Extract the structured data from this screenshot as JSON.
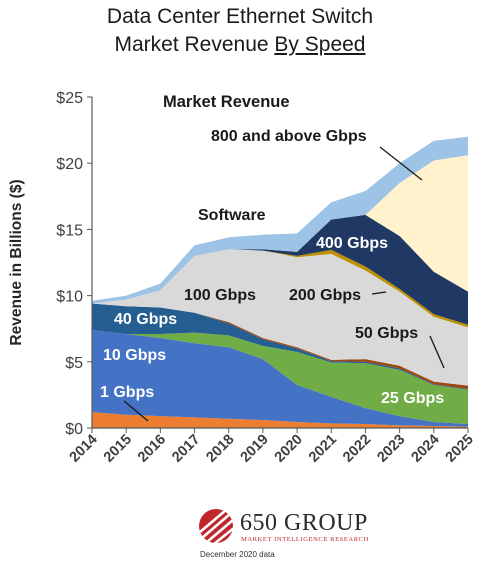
{
  "page": {
    "title_line1": "Data Center Ethernet Switch",
    "title_line2_prefix": "Market Revenue ",
    "title_line2_underlined": "By Speed",
    "logo_text": "650 GROUP",
    "logo_subtext": "MARKET INTELLIGENCE RESEARCH",
    "footnote": "December 2020 data"
  },
  "chart_data": {
    "type": "area",
    "stacked": true,
    "title": "Data Center Ethernet Switch Market Revenue By Speed",
    "xlabel": "",
    "ylabel": "Revenue in Billions ($)",
    "inner_label": "Market Revenue",
    "x": [
      "2014",
      "2015",
      "2016",
      "2017",
      "2018",
      "2019",
      "2020",
      "2021",
      "2022",
      "2023",
      "2024",
      "2025"
    ],
    "ylim": [
      0,
      25
    ],
    "yticks": [
      "$0",
      "$5",
      "$10",
      "$15",
      "$20",
      "$25"
    ],
    "ytick_values": [
      0,
      5,
      10,
      15,
      20,
      25
    ],
    "series": [
      {
        "name": "1 Gbps",
        "color": "#ed7d31",
        "values": [
          1.2,
          1.0,
          0.9,
          0.8,
          0.7,
          0.6,
          0.45,
          0.35,
          0.3,
          0.2,
          0.15,
          0.1
        ]
      },
      {
        "name": "10 Gbps",
        "color": "#4472c4",
        "values": [
          6.2,
          6.1,
          5.9,
          5.6,
          5.4,
          4.6,
          2.8,
          2.0,
          1.2,
          0.7,
          0.3,
          0.2
        ]
      },
      {
        "name": "25 Gbps",
        "color": "#70ad47",
        "values": [
          0.0,
          0.0,
          0.3,
          0.8,
          0.9,
          1.0,
          2.5,
          2.6,
          3.4,
          3.5,
          2.8,
          2.6
        ]
      },
      {
        "name": "40 Gbps",
        "color": "#255e91",
        "values": [
          2.0,
          2.1,
          2.0,
          1.5,
          0.9,
          0.5,
          0.25,
          0.1,
          0.1,
          0.1,
          0.05,
          0.05
        ]
      },
      {
        "name": "50 Gbps",
        "color": "#9e480e",
        "values": [
          0.0,
          0.0,
          0.0,
          0.0,
          0.1,
          0.1,
          0.1,
          0.1,
          0.2,
          0.2,
          0.2,
          0.25
        ]
      },
      {
        "name": "100 Gbps",
        "color": "#d9d9d9",
        "values": [
          0.0,
          0.5,
          1.3,
          4.3,
          5.5,
          6.6,
          6.8,
          8.0,
          6.7,
          5.6,
          4.9,
          4.4
        ]
      },
      {
        "name": "200 Gbps",
        "color": "#bf9000",
        "values": [
          0.0,
          0.0,
          0.0,
          0.0,
          0.0,
          0.0,
          0.1,
          0.3,
          0.3,
          0.2,
          0.2,
          0.2
        ]
      },
      {
        "name": "400 Gbps",
        "color": "#1f3864",
        "values": [
          0.0,
          0.0,
          0.0,
          0.0,
          0.0,
          0.1,
          0.3,
          2.3,
          3.9,
          4.0,
          3.2,
          2.5
        ]
      },
      {
        "name": "800 and above Gbps",
        "color": "#fff2cc",
        "values": [
          0.0,
          0.0,
          0.0,
          0.0,
          0.0,
          0.0,
          0.0,
          0.0,
          0.0,
          4.0,
          8.4,
          10.3
        ]
      },
      {
        "name": "Software",
        "color": "#9dc3e6",
        "values": [
          0.2,
          0.3,
          0.5,
          0.8,
          0.9,
          1.1,
          1.4,
          1.3,
          1.8,
          1.5,
          1.5,
          1.4
        ]
      }
    ],
    "labels": [
      {
        "text": "1 Gbps",
        "series": "1 Gbps",
        "color": "#ffffff"
      },
      {
        "text": "10 Gbps",
        "series": "10 Gbps",
        "color": "#ffffff"
      },
      {
        "text": "25 Gbps",
        "series": "25 Gbps",
        "color": "#ffffff"
      },
      {
        "text": "40 Gbps",
        "series": "40 Gbps",
        "color": "#ffffff"
      },
      {
        "text": "50 Gbps",
        "series": "50 Gbps",
        "color": "#1a1a1a"
      },
      {
        "text": "100 Gbps",
        "series": "100 Gbps",
        "color": "#1a1a1a"
      },
      {
        "text": "200 Gbps",
        "series": "200 Gbps",
        "color": "#1a1a1a"
      },
      {
        "text": "400 Gbps",
        "series": "400 Gbps",
        "color": "#ffffff"
      },
      {
        "text": "800 and above Gbps",
        "series": "800 and above Gbps",
        "color": "#1a1a1a"
      },
      {
        "text": "Software",
        "series": "Software",
        "color": "#1a1a1a"
      }
    ],
    "grid": false,
    "legend": "none"
  }
}
